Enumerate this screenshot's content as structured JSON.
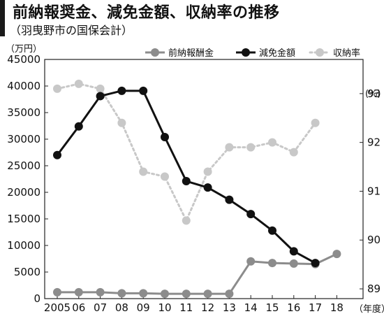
{
  "header": {
    "title": "前納報奨金、減免金額、収納率の推移",
    "subtitle": "（羽曳野市の国保会計）"
  },
  "chart_data": {
    "type": "line",
    "categories": [
      "2005",
      "06",
      "07",
      "08",
      "09",
      "10",
      "11",
      "12",
      "13",
      "14",
      "15",
      "16",
      "17",
      "18"
    ],
    "left_axis_unit": "（万円）",
    "right_axis_unit": "(%)",
    "x_axis_unit": "（年度）",
    "ylim_left": [
      0,
      45000
    ],
    "left_ticks": [
      "0",
      "5000",
      "10000",
      "15000",
      "20000",
      "25000",
      "30000",
      "35000",
      "40000",
      "45000"
    ],
    "ylim_right": [
      88.8,
      93.7
    ],
    "right_ticks": [
      "89",
      "90",
      "91",
      "92",
      "93"
    ],
    "grid": false,
    "legend_position": "top",
    "series": [
      {
        "name": "前納報酬金",
        "axis": "left",
        "color": "#8c8c8c",
        "style": "solid",
        "values": [
          1200,
          1200,
          1200,
          1000,
          1000,
          900,
          900,
          900,
          900,
          7000,
          6700,
          6600,
          6500,
          8400
        ]
      },
      {
        "name": "減免金額",
        "axis": "left",
        "color": "#111111",
        "style": "solid",
        "values": [
          27000,
          32400,
          38100,
          39100,
          39100,
          30400,
          22100,
          20900,
          18600,
          15900,
          12800,
          8900,
          6700,
          null
        ]
      },
      {
        "name": "収納率",
        "axis": "right",
        "color": "#c8c8c8",
        "style": "dotted",
        "values": [
          93.1,
          93.2,
          93.1,
          92.4,
          91.4,
          91.3,
          90.4,
          91.4,
          91.9,
          91.9,
          92.0,
          91.8,
          92.4,
          null
        ]
      }
    ]
  }
}
